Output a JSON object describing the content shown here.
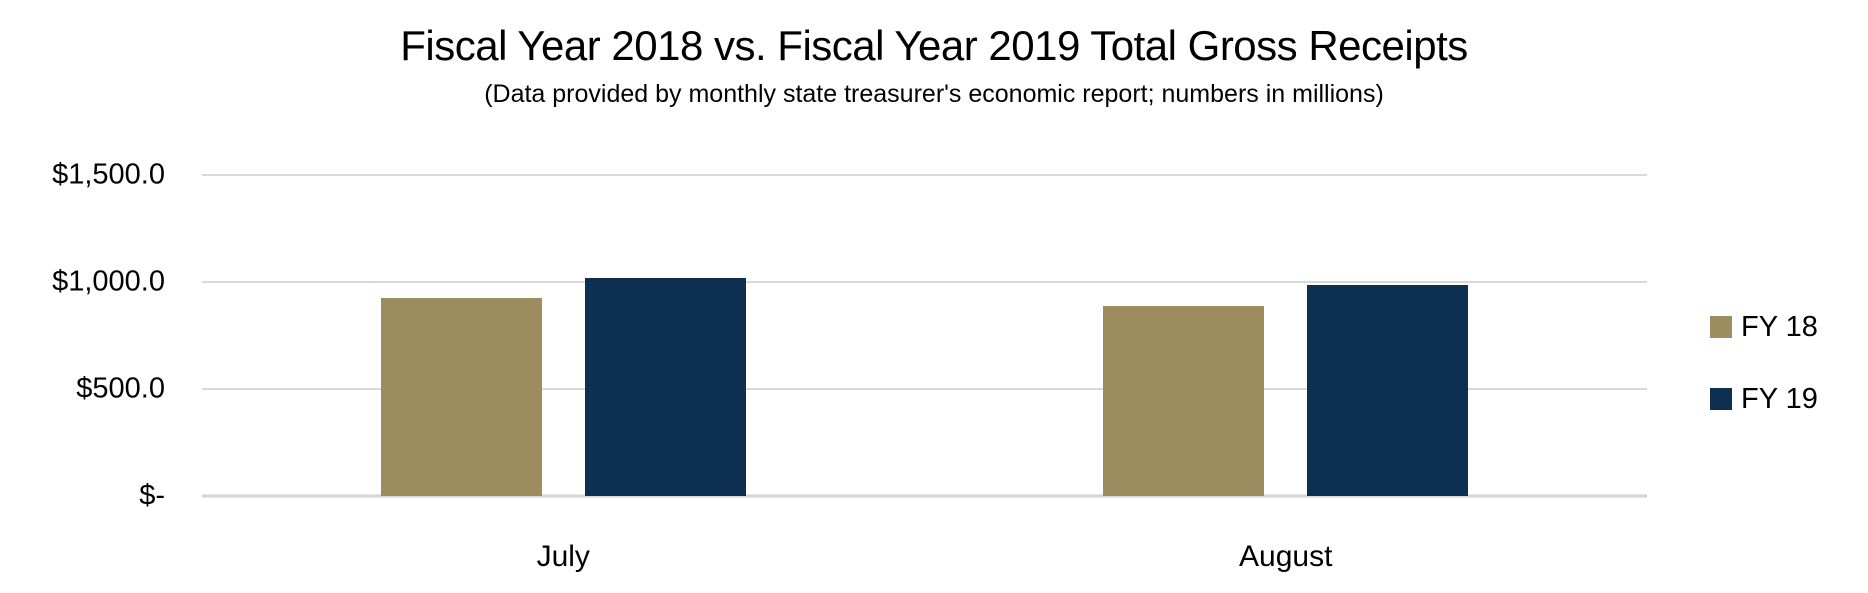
{
  "title": "Fiscal Year 2018 vs. Fiscal Year 2019 Total Gross Receipts",
  "subtitle": "(Data provided by monthly state treasurer's economic report; numbers in millions)",
  "colors": {
    "fy18": "#9c8c5e",
    "fy19": "#0d2f50",
    "gridline": "#d9d9d9"
  },
  "chart_data": {
    "type": "bar",
    "title": "Fiscal Year 2018 vs. Fiscal Year 2019 Total Gross Receipts",
    "subtitle": "(Data provided by monthly state treasurer's economic report; numbers in millions)",
    "categories": [
      "July",
      "August"
    ],
    "series": [
      {
        "name": "FY 18",
        "color": "#9c8c5e",
        "values": [
          925,
          888
        ]
      },
      {
        "name": "FY 19",
        "color": "#0d2f50",
        "values": [
          1020,
          986
        ]
      }
    ],
    "xlabel": "",
    "ylabel": "",
    "ylim": [
      0,
      1500
    ],
    "yticks": [
      {
        "value": 0,
        "label": "$-"
      },
      {
        "value": 500,
        "label": "$500.0"
      },
      {
        "value": 1000,
        "label": "$1,000.0"
      },
      {
        "value": 1500,
        "label": "$1,500.0"
      }
    ],
    "grid": true,
    "legend_position": "right"
  }
}
